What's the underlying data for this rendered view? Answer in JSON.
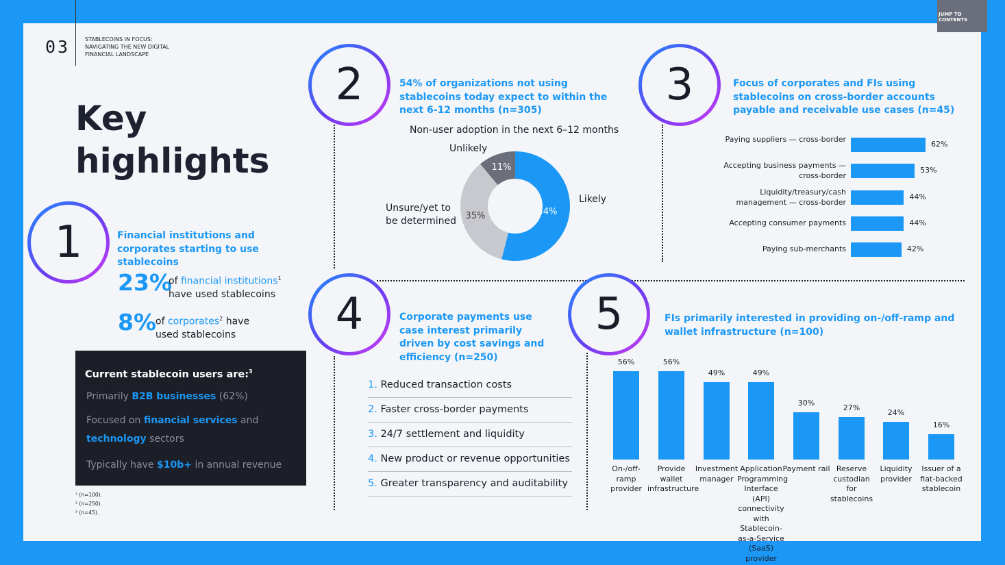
{
  "page_number": "03",
  "report_subtitle": "STABLECOINS IN FOCUS: NAVIGATING THE NEW DIGITAL FINANCIAL LANDSCAPE",
  "jump_link": "JUMP TO CONTENTS",
  "title_line1": "Key",
  "title_line2": "highlights",
  "section1": {
    "number": "1",
    "heading": "Financial institutions and corporates starting to use stablecoins",
    "stat1_value": "23%",
    "stat1_of": "of",
    "stat1_highlight": "financial institutions",
    "stat1_sup": "1",
    "stat1_rest": "have used stablecoins",
    "stat2_value": "8%",
    "stat2_of": "of",
    "stat2_highlight": "corporates",
    "stat2_sup": "2",
    "stat2_have": "have",
    "stat2_rest": "used stablecoins"
  },
  "users_box": {
    "title": "Current stablecoin users are:",
    "title_sup": "3",
    "line1_pre": "Primarily",
    "line1_hl": "B2B businesses",
    "line1_post": "(62%)",
    "line2_pre": "Focused on",
    "line2_hl": "financial services",
    "line2_post": "and",
    "line3_hl": "technology",
    "line3_post": "sectors",
    "line4_pre": "Typically have",
    "line4_hl": "$10b+",
    "line4_post": "in annual revenue"
  },
  "footnotes": [
    "¹ (n=100).",
    "² (n=250).",
    "³ (n=45)."
  ],
  "section2": {
    "number": "2",
    "heading": "54% of organizations not using stablecoins today expect to within the next 6-12 months (n=305)",
    "chart_title": "Non-user adoption in the next 6–12 months",
    "label_unlikely": "Unlikely",
    "label_likely": "Likely",
    "label_unsure": "Unsure/yet to be determined",
    "pct_unlikely": "11%",
    "pct_likely": "54%",
    "pct_unsure": "35%"
  },
  "section3": {
    "number": "3",
    "heading": "Focus of corporates and FIs using stablecoins on cross-border accounts payable and receivable use cases (n=45)"
  },
  "section4": {
    "number": "4",
    "heading": "Corporate payments use case interest primarily driven by cost savings and efficiency (n=250)",
    "items": [
      {
        "num": "1.",
        "text": "Reduced transaction costs"
      },
      {
        "num": "2.",
        "text": "Faster cross-border payments"
      },
      {
        "num": "3.",
        "text": "24/7 settlement and liquidity"
      },
      {
        "num": "4.",
        "text": "New product or revenue opportunities"
      },
      {
        "num": "5.",
        "text": "Greater transparency and auditability"
      }
    ]
  },
  "section5": {
    "number": "5",
    "heading": "FIs primarily interested in providing on-/off-ramp and wallet infrastructure (n=100)"
  },
  "chart_data": [
    {
      "type": "pie",
      "title": "Non-user adoption in the next 6–12 months",
      "categories": [
        "Likely",
        "Unsure/yet to be determined",
        "Unlikely"
      ],
      "values": [
        54,
        35,
        11
      ],
      "colors": [
        "#1b98f5",
        "#c8c9cf",
        "#6b6f7c"
      ]
    },
    {
      "type": "bar",
      "orientation": "horizontal",
      "categories": [
        "Paying suppliers — cross-border",
        "Accepting business payments — cross-border",
        "Liquidity/treasury/cash management — cross-border",
        "Accepting consumer payments",
        "Paying sub-merchants"
      ],
      "values": [
        62,
        53,
        44,
        44,
        42
      ],
      "value_labels": [
        "62%",
        "53%",
        "44%",
        "44%",
        "42%"
      ],
      "color": "#1b98f5"
    },
    {
      "type": "bar",
      "orientation": "vertical",
      "categories": [
        "On-/off-ramp provider",
        "Provide wallet infrastructure",
        "Investment manager",
        "Application Programming Interface (API) connectivity with Stablecoin-as-a-Service (SaaS) provider",
        "Payment rail",
        "Reserve custodian for stablecoins",
        "Liquidity provider",
        "Issuer of a fiat-backed stablecoin"
      ],
      "values": [
        56,
        56,
        49,
        49,
        30,
        27,
        24,
        16
      ],
      "value_labels": [
        "56%",
        "56%",
        "49%",
        "49%",
        "30%",
        "27%",
        "24%",
        "16%"
      ],
      "color": "#1b98f5"
    }
  ]
}
